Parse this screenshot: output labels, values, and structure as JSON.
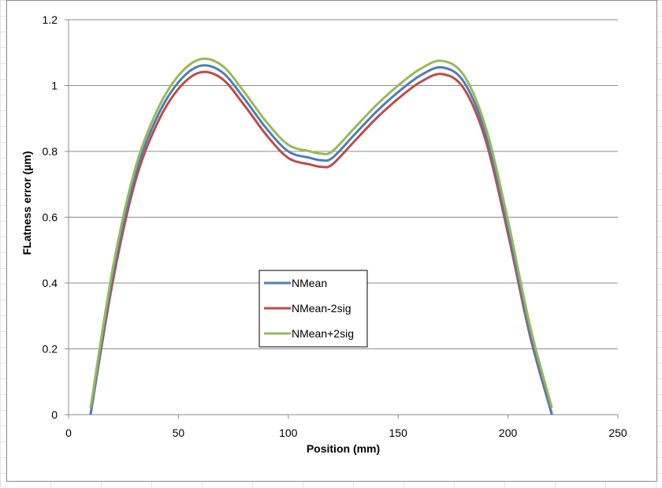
{
  "chart_data": {
    "type": "line",
    "title": "",
    "xlabel": "Position  (mm)",
    "ylabel": "FLatness error (µm)",
    "xlim": [
      0,
      250
    ],
    "ylim": [
      0,
      1.2
    ],
    "x_ticks": [
      "0",
      "50",
      "100",
      "150",
      "200",
      "250"
    ],
    "y_ticks": [
      "0",
      "0.2",
      "0.4",
      "0.6",
      "0.8",
      "1",
      "1.2"
    ],
    "x_tick_values": [
      0,
      50,
      100,
      150,
      200,
      250
    ],
    "y_tick_values": [
      0,
      0.2,
      0.4,
      0.6,
      0.8,
      1.0,
      1.2
    ],
    "grid": "horizontal",
    "legend_position": "center-left",
    "x": [
      10,
      20,
      30,
      40,
      50,
      60,
      70,
      80,
      90,
      100,
      110,
      115,
      120,
      130,
      140,
      150,
      160,
      170,
      180,
      190,
      200,
      210,
      220
    ],
    "series": [
      {
        "name": "NMean",
        "color": "#4a7ebb",
        "values": [
          0.0,
          0.42,
          0.72,
          0.9,
          1.01,
          1.06,
          1.04,
          0.96,
          0.87,
          0.8,
          0.78,
          0.773,
          0.78,
          0.85,
          0.92,
          0.98,
          1.03,
          1.055,
          1.01,
          0.85,
          0.57,
          0.25,
          0.0
        ]
      },
      {
        "name": "NMean-2sig",
        "color": "#be4b48",
        "values": [
          0.0,
          0.4,
          0.7,
          0.88,
          0.99,
          1.04,
          1.02,
          0.94,
          0.85,
          0.78,
          0.76,
          0.753,
          0.76,
          0.83,
          0.9,
          0.96,
          1.01,
          1.035,
          0.99,
          0.83,
          0.55,
          0.24,
          0.0
        ]
      },
      {
        "name": "NMean+2sig",
        "color": "#98b954",
        "values": [
          0.02,
          0.44,
          0.74,
          0.92,
          1.03,
          1.08,
          1.06,
          0.98,
          0.89,
          0.82,
          0.8,
          0.793,
          0.8,
          0.87,
          0.94,
          1.0,
          1.05,
          1.075,
          1.03,
          0.87,
          0.59,
          0.27,
          0.02
        ]
      }
    ]
  }
}
